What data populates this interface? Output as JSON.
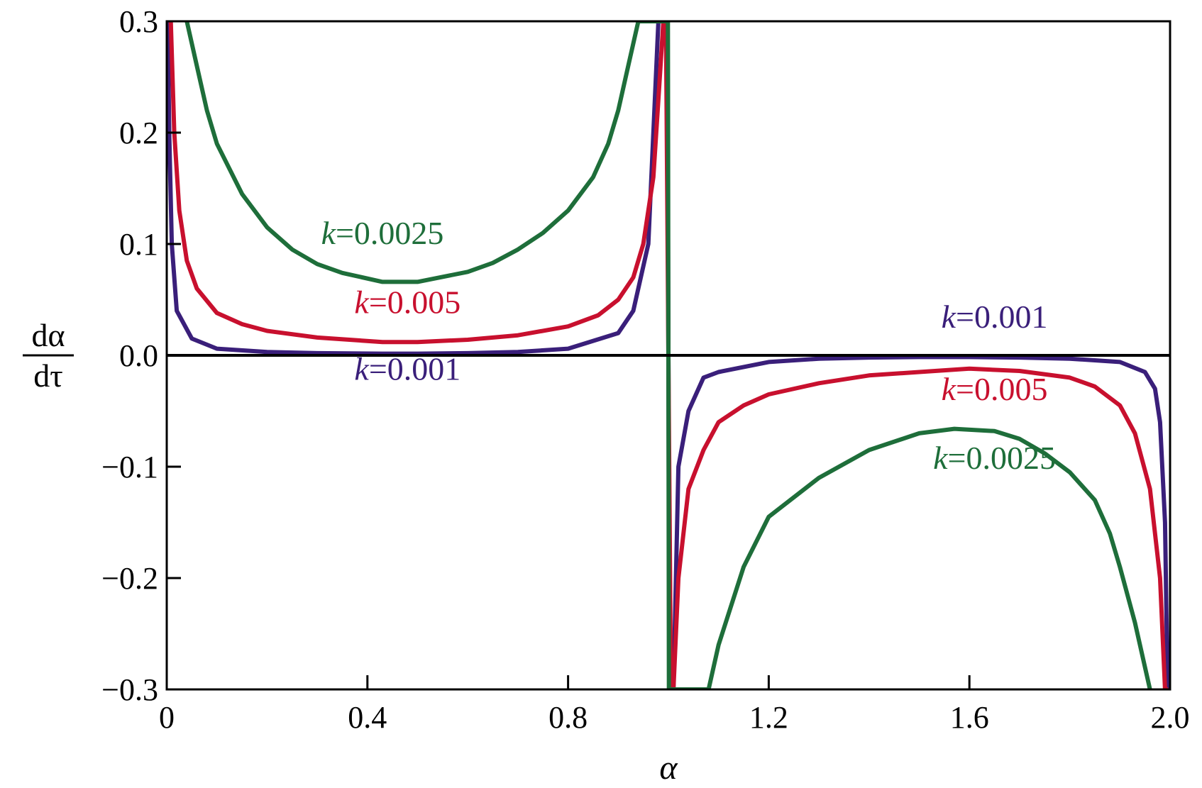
{
  "chart_data": {
    "type": "line",
    "xlabel": "α",
    "ylabel": {
      "numerator": "dα",
      "denominator": "dτ"
    },
    "xlim": [
      0,
      2.0
    ],
    "ylim": [
      -0.3,
      0.3
    ],
    "xticks": [
      {
        "value": 0,
        "label": "0"
      },
      {
        "value": 0.4,
        "label": "0.4"
      },
      {
        "value": 0.8,
        "label": "0.8"
      },
      {
        "value": 1.2,
        "label": "1.2"
      },
      {
        "value": 1.6,
        "label": "1.6"
      },
      {
        "value": 2.0,
        "label": "2.0"
      }
    ],
    "yticks": [
      {
        "value": 0.3,
        "label": "0.3"
      },
      {
        "value": 0.2,
        "label": "0.2"
      },
      {
        "value": 0.1,
        "label": "0.1"
      },
      {
        "value": 0.0,
        "label": "0.0"
      },
      {
        "value": -0.1,
        "label": "−0.1"
      },
      {
        "value": -0.2,
        "label": "−0.2"
      },
      {
        "value": -0.3,
        "label": "−0.3"
      }
    ],
    "grid": false,
    "series": [
      {
        "k": "0.001",
        "color": "#3a1f7a",
        "label_positions": [
          [
            0.48,
            -0.022
          ],
          [
            1.65,
            0.025
          ]
        ],
        "x": [
          0.002,
          0.005,
          0.01,
          0.02,
          0.05,
          0.1,
          0.2,
          0.3,
          0.43,
          0.5,
          0.6,
          0.7,
          0.8,
          0.9,
          0.93,
          0.96,
          0.98,
          0.99,
          0.998,
          1.002,
          1.01,
          1.02,
          1.04,
          1.07,
          1.1,
          1.2,
          1.3,
          1.4,
          1.5,
          1.57,
          1.6,
          1.7,
          1.8,
          1.9,
          1.95,
          1.97,
          1.98,
          1.99,
          1.995,
          1.998
        ],
        "y": [
          0.3,
          0.2,
          0.1,
          0.04,
          0.015,
          0.006,
          0.003,
          0.002,
          0.0015,
          0.0015,
          0.002,
          0.003,
          0.006,
          0.02,
          0.04,
          0.1,
          0.3,
          0.3,
          0.3,
          -0.3,
          -0.3,
          -0.1,
          -0.05,
          -0.02,
          -0.015,
          -0.006,
          -0.003,
          -0.002,
          -0.0015,
          -0.0015,
          -0.0015,
          -0.002,
          -0.003,
          -0.006,
          -0.015,
          -0.03,
          -0.06,
          -0.15,
          -0.3,
          -0.3
        ]
      },
      {
        "k": "0.005",
        "color": "#c8102e",
        "label_positions": [
          [
            0.48,
            0.038
          ],
          [
            1.65,
            -0.04
          ]
        ],
        "x": [
          0.008,
          0.015,
          0.025,
          0.04,
          0.06,
          0.1,
          0.15,
          0.2,
          0.3,
          0.43,
          0.5,
          0.6,
          0.7,
          0.8,
          0.86,
          0.9,
          0.93,
          0.95,
          0.97,
          0.98,
          0.99,
          0.995,
          1.005,
          1.01,
          1.02,
          1.04,
          1.07,
          1.1,
          1.15,
          1.2,
          1.3,
          1.4,
          1.5,
          1.6,
          1.7,
          1.8,
          1.85,
          1.9,
          1.93,
          1.96,
          1.98,
          1.99,
          1.996
        ],
        "y": [
          0.3,
          0.2,
          0.13,
          0.085,
          0.06,
          0.038,
          0.028,
          0.022,
          0.016,
          0.012,
          0.012,
          0.014,
          0.018,
          0.026,
          0.036,
          0.05,
          0.07,
          0.1,
          0.16,
          0.23,
          0.3,
          0.3,
          -0.3,
          -0.3,
          -0.2,
          -0.12,
          -0.085,
          -0.06,
          -0.045,
          -0.035,
          -0.025,
          -0.018,
          -0.015,
          -0.012,
          -0.014,
          -0.02,
          -0.028,
          -0.045,
          -0.07,
          -0.12,
          -0.2,
          -0.3,
          -0.3
        ]
      },
      {
        "k": "0.0025",
        "color": "#1e6e3a",
        "label_positions": [
          [
            0.43,
            0.1
          ],
          [
            1.65,
            -0.102
          ]
        ],
        "x": [
          0.04,
          0.06,
          0.08,
          0.1,
          0.15,
          0.2,
          0.25,
          0.3,
          0.35,
          0.43,
          0.5,
          0.6,
          0.65,
          0.7,
          0.75,
          0.8,
          0.85,
          0.88,
          0.9,
          0.92,
          0.94,
          0.96,
          0.975,
          0.985,
          0.99,
          0.995,
          0.999,
          1.001,
          1.005,
          1.01,
          1.02,
          1.03,
          1.05,
          1.08,
          1.1,
          1.15,
          1.2,
          1.3,
          1.4,
          1.5,
          1.57,
          1.65,
          1.7,
          1.75,
          1.8,
          1.85,
          1.88,
          1.9,
          1.93,
          1.96
        ],
        "y": [
          0.3,
          0.26,
          0.22,
          0.19,
          0.145,
          0.115,
          0.095,
          0.082,
          0.074,
          0.066,
          0.066,
          0.075,
          0.083,
          0.095,
          0.11,
          0.13,
          0.16,
          0.19,
          0.22,
          0.26,
          0.3,
          0.3,
          0.3,
          0.3,
          0.3,
          0.3,
          0.3,
          -0.3,
          -0.3,
          -0.3,
          -0.3,
          -0.3,
          -0.3,
          -0.3,
          -0.26,
          -0.19,
          -0.145,
          -0.11,
          -0.085,
          -0.07,
          -0.066,
          -0.068,
          -0.075,
          -0.088,
          -0.105,
          -0.13,
          -0.16,
          -0.19,
          -0.24,
          -0.3
        ]
      }
    ]
  }
}
